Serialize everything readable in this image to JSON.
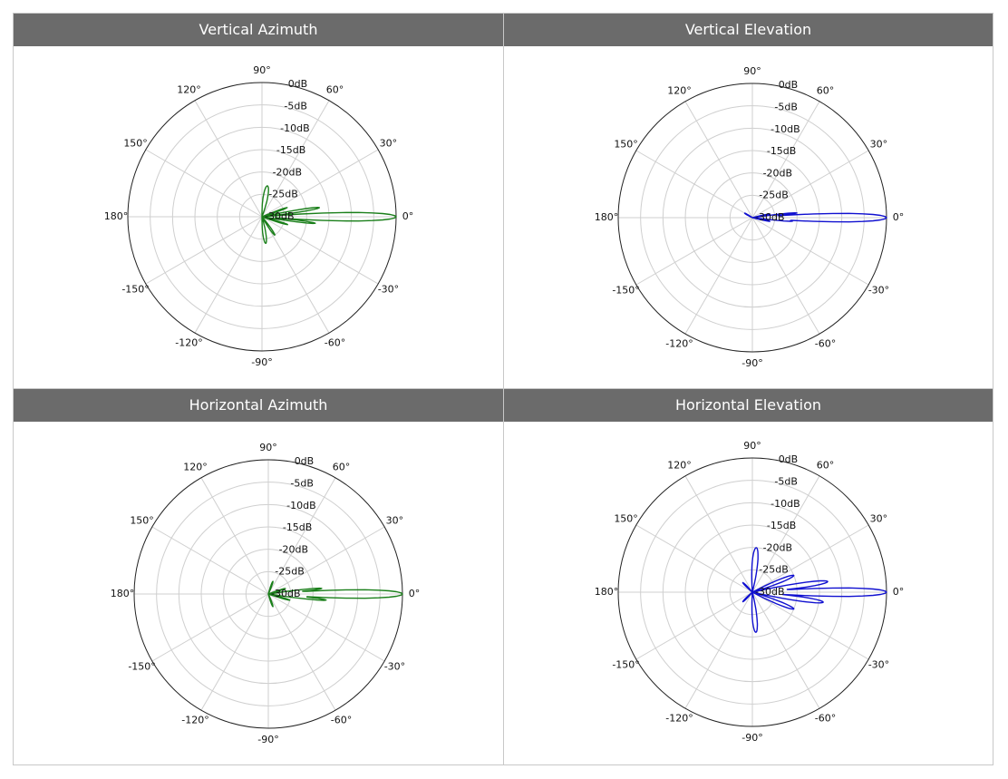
{
  "chart_data": [
    {
      "type": "polar",
      "title": "Vertical Azimuth",
      "color": "#1a7f1a",
      "rlim_db": [
        -30,
        0
      ],
      "radial_tick_labels": [
        "0dB",
        "-5dB",
        "-10dB",
        "-15dB",
        "-20dB",
        "-25dB",
        "-30dB"
      ],
      "angle_tick_labels": [
        "0°",
        "30°",
        "60°",
        "90°",
        "120°",
        "150°",
        "180°",
        "-150°",
        "-120°",
        "-90°",
        "-60°",
        "-30°"
      ],
      "lobes": [
        {
          "angle_deg": 0,
          "gain_db": 0,
          "width_deg": 3
        },
        {
          "angle_deg": 9,
          "gain_db": -17,
          "width_deg": 3
        },
        {
          "angle_deg": -7,
          "gain_db": -18,
          "width_deg": 2.5
        },
        {
          "angle_deg": 20,
          "gain_db": -24,
          "width_deg": 4
        },
        {
          "angle_deg": -17,
          "gain_db": -24,
          "width_deg": 4
        },
        {
          "angle_deg": 80,
          "gain_db": -23,
          "width_deg": 14
        },
        {
          "angle_deg": -82,
          "gain_db": -24,
          "width_deg": 12
        },
        {
          "angle_deg": -55,
          "gain_db": -25,
          "width_deg": 8
        }
      ]
    },
    {
      "type": "polar",
      "title": "Vertical Elevation",
      "color": "#1010d0",
      "rlim_db": [
        -30,
        0
      ],
      "radial_tick_labels": [
        "0dB",
        "-5dB",
        "-10dB",
        "-15dB",
        "-20dB",
        "-25dB",
        "-30dB"
      ],
      "angle_tick_labels": [
        "0°",
        "30°",
        "60°",
        "90°",
        "120°",
        "150°",
        "180°",
        "-150°",
        "-120°",
        "-90°",
        "-60°",
        "-30°"
      ],
      "lobes": [
        {
          "angle_deg": 0,
          "gain_db": 0,
          "width_deg": 3
        },
        {
          "angle_deg": 6,
          "gain_db": -20,
          "width_deg": 2.5
        },
        {
          "angle_deg": -5,
          "gain_db": -21,
          "width_deg": 2.5
        },
        {
          "angle_deg": 12,
          "gain_db": -26,
          "width_deg": 4
        },
        {
          "angle_deg": -12,
          "gain_db": -26,
          "width_deg": 4
        },
        {
          "angle_deg": 150,
          "gain_db": -28,
          "width_deg": 12
        }
      ]
    },
    {
      "type": "polar",
      "title": "Horizontal Azimuth",
      "color": "#1a7f1a",
      "rlim_db": [
        -30,
        0
      ],
      "radial_tick_labels": [
        "0dB",
        "-5dB",
        "-10dB",
        "-15dB",
        "-20dB",
        "-25dB",
        "-30dB"
      ],
      "angle_tick_labels": [
        "0°",
        "30°",
        "60°",
        "90°",
        "120°",
        "150°",
        "180°",
        "-150°",
        "-120°",
        "-90°",
        "-60°",
        "-30°"
      ],
      "lobes": [
        {
          "angle_deg": 0,
          "gain_db": 0,
          "width_deg": 3
        },
        {
          "angle_deg": 6,
          "gain_db": -18,
          "width_deg": 2.5
        },
        {
          "angle_deg": -6,
          "gain_db": -17,
          "width_deg": 2.5
        },
        {
          "angle_deg": 18,
          "gain_db": -26,
          "width_deg": 5
        },
        {
          "angle_deg": -16,
          "gain_db": -25,
          "width_deg": 5
        },
        {
          "angle_deg": 70,
          "gain_db": -27,
          "width_deg": 10
        },
        {
          "angle_deg": -70,
          "gain_db": -27,
          "width_deg": 10
        }
      ]
    },
    {
      "type": "polar",
      "title": "Horizontal Elevation",
      "color": "#1010d0",
      "rlim_db": [
        -30,
        0
      ],
      "radial_tick_labels": [
        "0dB",
        "-5dB",
        "-10dB",
        "-15dB",
        "-20dB",
        "-25dB",
        "-30dB"
      ],
      "angle_tick_labels": [
        "0°",
        "30°",
        "60°",
        "90°",
        "120°",
        "150°",
        "180°",
        "-150°",
        "-120°",
        "-90°",
        "-60°",
        "-30°"
      ],
      "lobes": [
        {
          "angle_deg": 0,
          "gain_db": 0,
          "width_deg": 3
        },
        {
          "angle_deg": 8,
          "gain_db": -13,
          "width_deg": 4
        },
        {
          "angle_deg": -8,
          "gain_db": -14,
          "width_deg": 4
        },
        {
          "angle_deg": 22,
          "gain_db": -20,
          "width_deg": 6
        },
        {
          "angle_deg": -22,
          "gain_db": -20,
          "width_deg": 6
        },
        {
          "angle_deg": 85,
          "gain_db": -20,
          "width_deg": 10
        },
        {
          "angle_deg": -85,
          "gain_db": -21,
          "width_deg": 10
        },
        {
          "angle_deg": 135,
          "gain_db": -27,
          "width_deg": 10
        },
        {
          "angle_deg": -135,
          "gain_db": -27,
          "width_deg": 10
        }
      ]
    }
  ]
}
